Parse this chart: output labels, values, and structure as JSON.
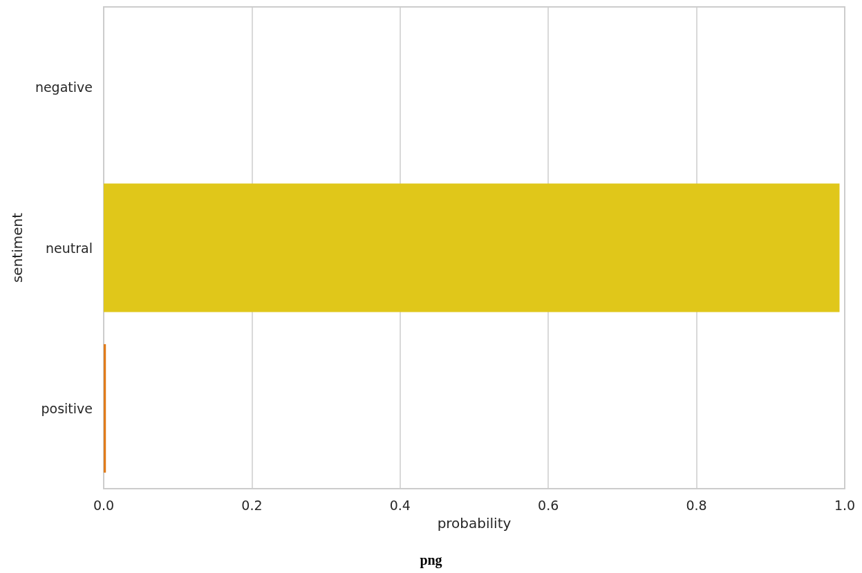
{
  "chart_data": {
    "type": "bar",
    "orientation": "horizontal",
    "categories": [
      "negative",
      "neutral",
      "positive"
    ],
    "values": [
      0,
      0.993,
      0.003
    ],
    "colors": [
      "#e0461a",
      "#e0c71a",
      "#e07b1a"
    ],
    "xlabel": "probability",
    "ylabel": "sentiment",
    "xlim": [
      0,
      1
    ],
    "xticks": [
      {
        "value": 0,
        "label": "0.0"
      },
      {
        "value": 0.2,
        "label": "0.2"
      },
      {
        "value": 0.4,
        "label": "0.4"
      },
      {
        "value": 0.6,
        "label": "0.6"
      },
      {
        "value": 0.8,
        "label": "0.8"
      },
      {
        "value": 1,
        "label": "1.0"
      }
    ],
    "grid": "x",
    "annotations": [
      "png"
    ]
  }
}
